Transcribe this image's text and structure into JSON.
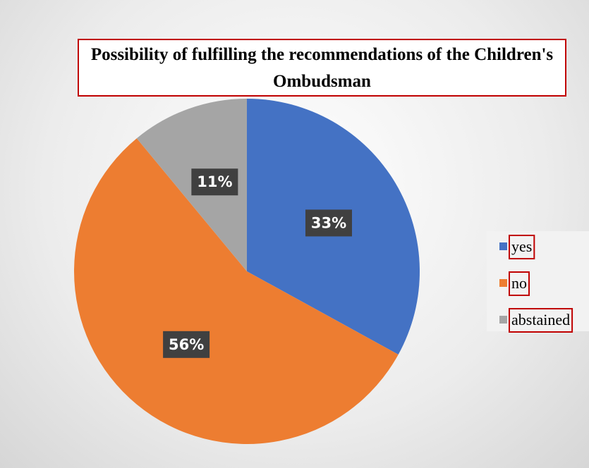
{
  "chart_data": {
    "type": "pie",
    "title": "Possibility of fulfilling the recommendations of the Children's Ombudsman",
    "categories": [
      "yes",
      "no",
      "abstained"
    ],
    "values": [
      33,
      56,
      11
    ],
    "value_labels": [
      "33%",
      "56%",
      "11%"
    ],
    "colors": [
      "#4472c4",
      "#ed7d31",
      "#a5a5a5"
    ],
    "legend": "right"
  }
}
